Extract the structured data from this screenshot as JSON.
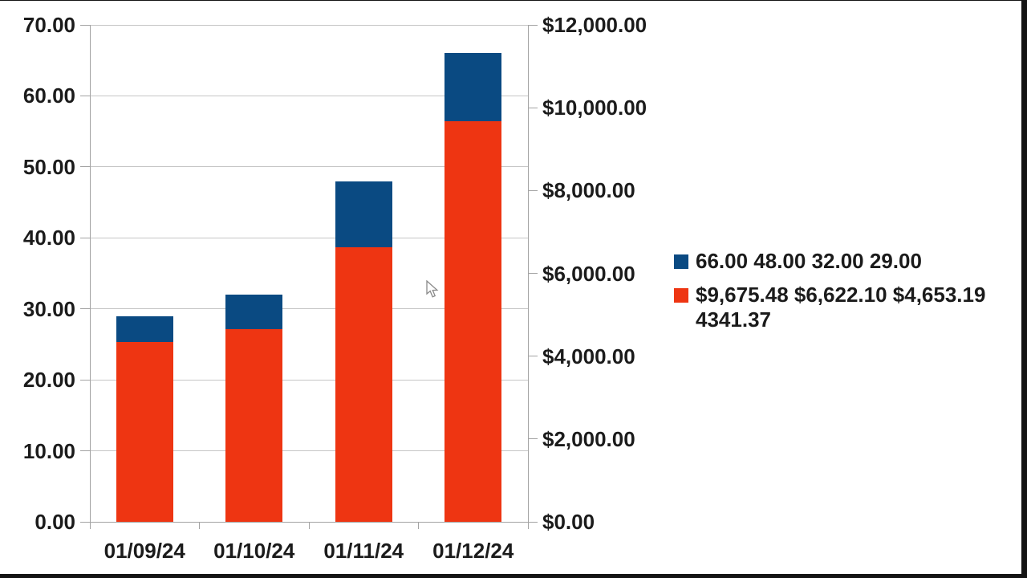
{
  "chart_data": {
    "type": "bar",
    "subtype": "dual-axis overlapped columns (renders like a stacked bar)",
    "title": "",
    "xlabel": "",
    "ylabel": "",
    "categories": [
      "01/09/24",
      "01/10/24",
      "01/11/24",
      "01/12/24"
    ],
    "series": [
      {
        "name": "66.00 48.00 32.00 29.00",
        "axis": "left",
        "color": "#0a4a82",
        "values": [
          29.0,
          32.0,
          48.0,
          66.0
        ]
      },
      {
        "name": "$9,675.48 $6,622.10 $4,653.19 4341.37",
        "axis": "right",
        "color": "#ee3512",
        "values": [
          4341.37,
          4653.19,
          6622.1,
          9675.48
        ]
      }
    ],
    "left_axis": {
      "min": 0,
      "max": 70,
      "step": 10,
      "tick_labels": [
        "70.00",
        "60.00",
        "50.00",
        "40.00",
        "30.00",
        "20.00",
        "10.00",
        "0.00"
      ]
    },
    "right_axis": {
      "min": 0,
      "max": 12000,
      "step": 2000,
      "tick_labels": [
        "$12,000.00",
        "$10,000.00",
        "$8,000.00",
        "$6,000.00",
        "$4,000.00",
        "$2,000.00",
        "$0.00"
      ]
    },
    "grid": "horizontal gridlines at left-axis intervals",
    "legend_position": "right"
  },
  "legend": {
    "items": [
      {
        "label": "66.00 48.00 32.00 29.00",
        "color": "#0a4a82"
      },
      {
        "label": "$9,675.48 $6,622.10 $4,653.19 4341.37",
        "color": "#ee3512"
      }
    ]
  },
  "colors": {
    "series_blue": "#0a4a82",
    "series_red": "#ee3512",
    "gridline": "#c6c6c6",
    "axis": "#a3a3a3",
    "text": "#1b1b1b",
    "frame": "#141414",
    "background": "#ffffff"
  },
  "cursor": {
    "present": true
  }
}
